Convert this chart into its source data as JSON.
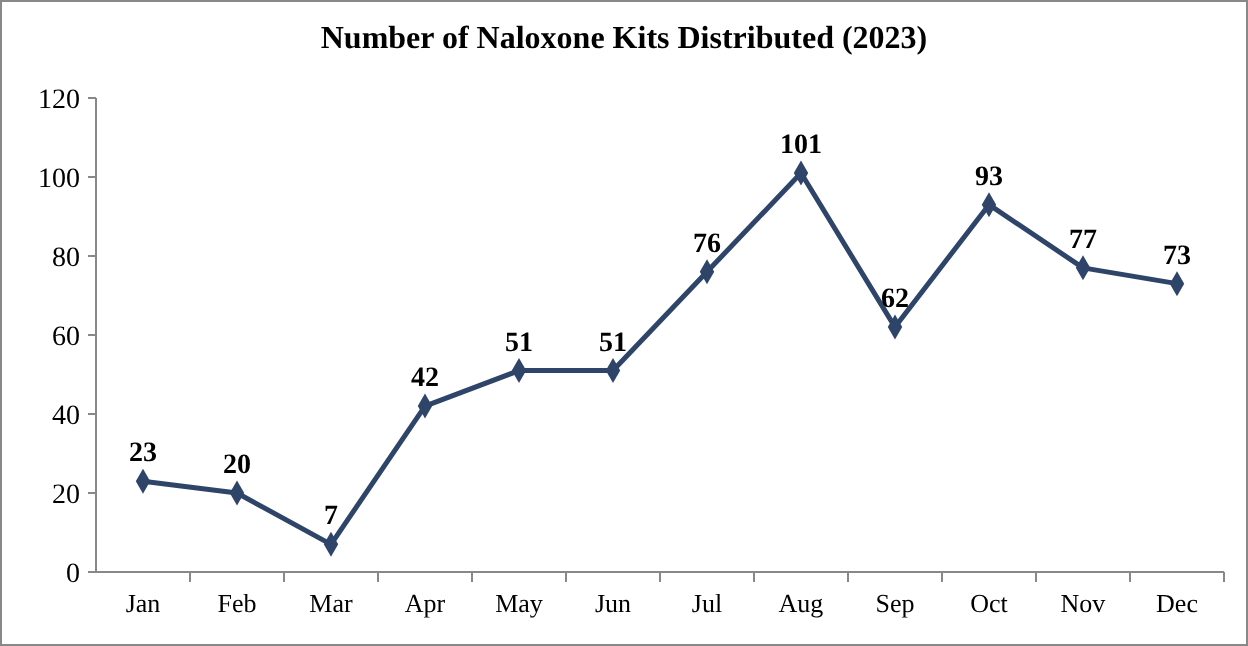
{
  "chart_data": {
    "type": "line",
    "title": "Number of Naloxone Kits Distributed (2023)",
    "categories": [
      "Jan",
      "Feb",
      "Mar",
      "Apr",
      "May",
      "Jun",
      "Jul",
      "Aug",
      "Sep",
      "Oct",
      "Nov",
      "Dec"
    ],
    "series": [
      {
        "color": "#2e4569",
        "values": [
          23,
          20,
          7,
          42,
          51,
          51,
          76,
          101,
          62,
          93,
          77,
          73
        ]
      }
    ],
    "ylim": [
      0,
      120
    ],
    "yticks": [
      0,
      20,
      40,
      60,
      80,
      100,
      120
    ],
    "grid": false,
    "marker": "diamond",
    "line_style": "solid",
    "data_labels": true
  }
}
